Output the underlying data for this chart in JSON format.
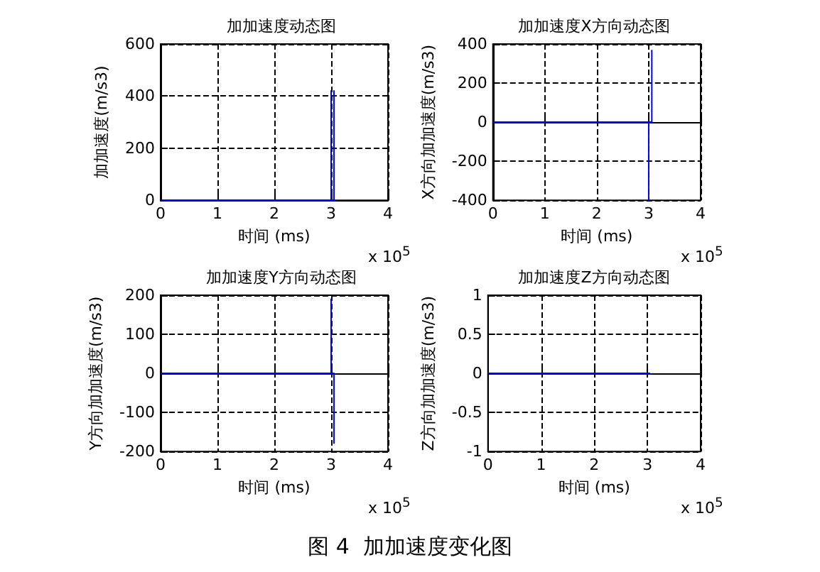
{
  "chart_data": [
    {
      "type": "line",
      "title": "加加速度动态图",
      "xlabel": "时间 (ms)",
      "ylabel": "加加速度(m/s3)",
      "annotations": [
        "x 10$^{5}$"
      ],
      "xlim": [
        0,
        4
      ],
      "xticks": [
        0,
        1,
        2,
        3,
        4
      ],
      "ylim": [
        0,
        600
      ],
      "yticks": [
        0,
        200,
        400,
        600
      ],
      "grid": true,
      "marker": "none",
      "line_style": "solid",
      "series": [
        {
          "color": "#0000ff",
          "x": [
            0,
            3.0,
            3.0,
            3.0,
            3.05,
            3.05,
            3.05
          ],
          "values": [
            0,
            0,
            420,
            0,
            0,
            420,
            0
          ]
        }
      ]
    },
    {
      "type": "line",
      "title": "加加速度X方向动态图",
      "xlabel": "时间 (ms)",
      "ylabel": "X方向加加速度(m/s3)",
      "annotations": [
        "x 10$^{5}$"
      ],
      "xlim": [
        0,
        4
      ],
      "xticks": [
        0,
        1,
        2,
        3,
        4
      ],
      "ylim": [
        -400,
        400
      ],
      "yticks": [
        -400,
        -200,
        0,
        200,
        400
      ],
      "grid": true,
      "marker": "none",
      "line_style": "solid",
      "series": [
        {
          "color": "#0000ff",
          "x": [
            0,
            3.0,
            3.0,
            3.0,
            3.06,
            3.06
          ],
          "values": [
            0,
            0,
            -400,
            0,
            0,
            370
          ]
        }
      ]
    },
    {
      "type": "line",
      "title": "加加速度Y方向动态图",
      "xlabel": "时间 (ms)",
      "ylabel": "Y方向加加速度(m/s3)",
      "annotations": [
        "x 10$^{5}$"
      ],
      "xlim": [
        0,
        4
      ],
      "xticks": [
        0,
        1,
        2,
        3,
        4
      ],
      "ylim": [
        -200,
        200
      ],
      "yticks": [
        -200,
        -100,
        0,
        100,
        200
      ],
      "grid": true,
      "marker": "none",
      "line_style": "solid",
      "series": [
        {
          "color": "#0000ff",
          "x": [
            0,
            3.0,
            3.0,
            3.0,
            3.05,
            3.05
          ],
          "values": [
            0,
            0,
            190,
            0,
            0,
            -180
          ]
        }
      ]
    },
    {
      "type": "line",
      "title": "加加速度Z方向动态图",
      "xlabel": "时间 (ms)",
      "ylabel": "Z方向加加速度(m/s3)",
      "annotations": [
        "x 10$^{5}$",
        "图 4  加加速度变化图"
      ],
      "xlim": [
        0,
        4
      ],
      "xticks": [
        0,
        1,
        2,
        3,
        4
      ],
      "ylim": [
        -1,
        1
      ],
      "yticks": [
        -1,
        -0.5,
        0,
        0.5,
        1
      ],
      "grid": true,
      "marker": "none",
      "line_style": "solid",
      "series": [
        {
          "color": "#0000ff",
          "x": [
            0,
            3.05
          ],
          "values": [
            0,
            0
          ]
        }
      ]
    }
  ]
}
